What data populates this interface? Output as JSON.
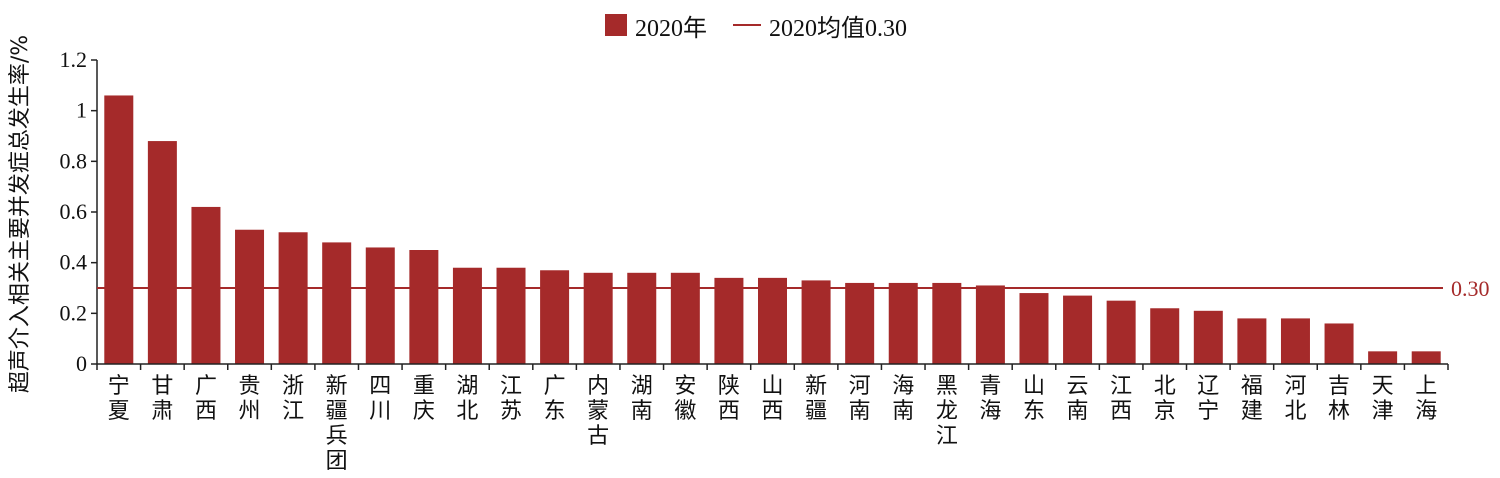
{
  "colors": {
    "bar": "#a52a2a",
    "mean_line": "#a52a2a",
    "axis": "#222222"
  },
  "legend": {
    "series_label": "2020年",
    "mean_label": "2020均值0.30"
  },
  "chart_data": {
    "type": "bar",
    "title": "",
    "xlabel": "",
    "ylabel": "超声介入相关主要并发症总发生率/%",
    "ylim": [
      0,
      1.2
    ],
    "yticks": [
      "0",
      "0.2",
      "0.4",
      "0.6",
      "0.8",
      "1",
      "1.2"
    ],
    "grid": false,
    "legend_position": "top-center",
    "categories": [
      "宁夏",
      "甘肃",
      "广西",
      "贵州",
      "浙江",
      "新疆兵团",
      "四川",
      "重庆",
      "湖北",
      "江苏",
      "广东",
      "内蒙古",
      "湖南",
      "安徽",
      "陕西",
      "山西",
      "新疆",
      "河南",
      "海南",
      "黑龙江",
      "青海",
      "山东",
      "云南",
      "江西",
      "北京",
      "辽宁",
      "福建",
      "河北",
      "吉林",
      "天津",
      "上海"
    ],
    "series": [
      {
        "name": "2020年",
        "values": [
          1.06,
          0.88,
          0.62,
          0.53,
          0.52,
          0.48,
          0.46,
          0.45,
          0.38,
          0.38,
          0.37,
          0.36,
          0.36,
          0.36,
          0.34,
          0.34,
          0.33,
          0.32,
          0.32,
          0.32,
          0.31,
          0.28,
          0.27,
          0.25,
          0.22,
          0.21,
          0.18,
          0.18,
          0.16,
          0.05,
          0.05
        ]
      }
    ],
    "reference_line": {
      "name": "2020均值0.30",
      "value": 0.3,
      "label": "0.30"
    }
  }
}
